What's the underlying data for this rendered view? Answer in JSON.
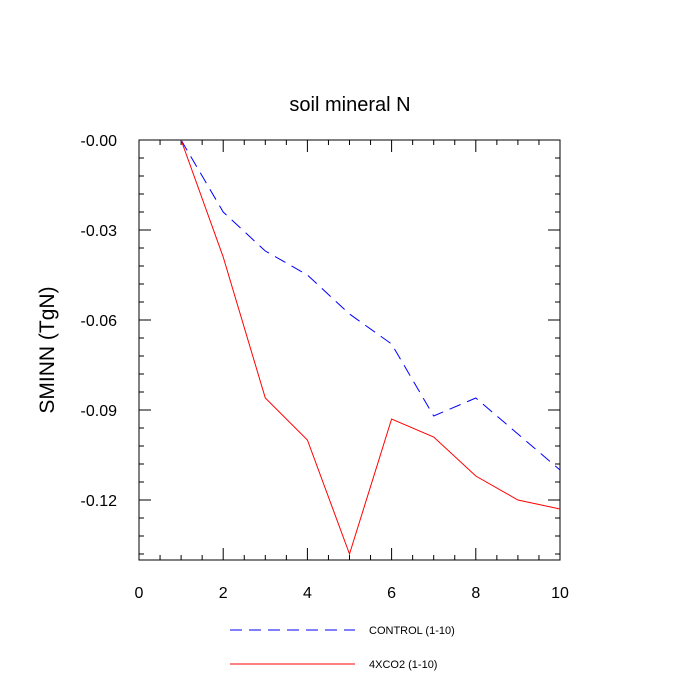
{
  "chart_data": {
    "type": "line",
    "title": "soil mineral N",
    "xlabel": "",
    "ylabel": "SMINN  (TgN)",
    "xlim": [
      0,
      10
    ],
    "ylim": [
      -0.14,
      0.0
    ],
    "x_ticks": [
      0,
      2,
      4,
      6,
      8,
      10
    ],
    "x_tick_labels": [
      "0",
      "2",
      "4",
      "6",
      "8",
      "10"
    ],
    "y_ticks": [
      0.0,
      -0.03,
      -0.06,
      -0.09,
      -0.12
    ],
    "y_tick_labels": [
      "-0.00",
      "-0.03",
      "-0.06",
      "-0.09",
      "-0.12"
    ],
    "grid": false,
    "legend_position": "bottom",
    "series": [
      {
        "name": "CONTROL (1-10)",
        "color": "#0000ff",
        "dash": "dashed",
        "x": [
          1,
          2,
          3,
          4,
          5,
          6,
          7,
          8,
          9,
          10
        ],
        "values": [
          0.0,
          -0.024,
          -0.037,
          -0.045,
          -0.058,
          -0.068,
          -0.092,
          -0.086,
          -0.098,
          -0.11
        ]
      },
      {
        "name": "4XCO2 (1-10)",
        "color": "#ff0000",
        "dash": "solid",
        "x": [
          1,
          2,
          3,
          4,
          5,
          6,
          7,
          8,
          9,
          10
        ],
        "values": [
          0.0,
          -0.039,
          -0.086,
          -0.1,
          -0.138,
          -0.093,
          -0.099,
          -0.112,
          -0.12,
          -0.123
        ]
      }
    ]
  }
}
